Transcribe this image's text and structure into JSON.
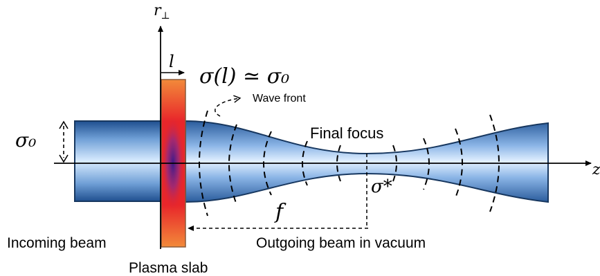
{
  "labels": {
    "axis_r": "r",
    "axis_r_sub": "⊥",
    "axis_z": "z",
    "slab_length": "l",
    "sigma_relation": "σ(l) ≃ σ₀",
    "wave_front": "Wave front",
    "sigma0": "σ₀",
    "final_focus": "Final  focus",
    "sigma_star": "σ*",
    "focal_length": "f",
    "incoming_beam": "Incoming beam",
    "outgoing_beam": "Outgoing beam in vacuum",
    "plasma_slab": "Plasma slab"
  },
  "colors": {
    "beam_dark": "#1f4f8f",
    "beam_light": "#d9ecff",
    "beam_outline": "#17375f",
    "slab_red": "#e8262a",
    "slab_orange": "#f28a3a",
    "slab_core": "#5a2aa0"
  }
}
